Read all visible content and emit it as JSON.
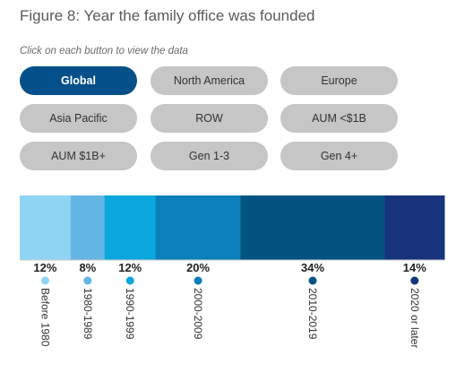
{
  "title": "Figure 8: Year the family office was founded",
  "instruction": "Click on each button to view the data",
  "buttons": [
    {
      "label": "Global",
      "active": true
    },
    {
      "label": "North America",
      "active": false
    },
    {
      "label": "Europe",
      "active": false
    },
    {
      "label": "Asia Pacific",
      "active": false
    },
    {
      "label": "ROW",
      "active": false
    },
    {
      "label": "AUM <$1B",
      "active": false
    },
    {
      "label": "AUM $1B+",
      "active": false
    },
    {
      "label": "Gen 1-3",
      "active": false
    },
    {
      "label": "Gen 4+",
      "active": false
    }
  ],
  "colors": {
    "active_button": "#05508a",
    "inactive_button": "#c6c6c6"
  },
  "chart_data": {
    "type": "bar",
    "orientation": "stacked-horizontal",
    "title": "Figure 8: Year the family office was founded",
    "categories": [
      "Before 1980",
      "1980-1989",
      "1990-1999",
      "2000-2009",
      "2010-2019",
      "2020 or later"
    ],
    "values": [
      12,
      8,
      12,
      20,
      34,
      14
    ],
    "value_labels": [
      "12%",
      "8%",
      "12%",
      "20%",
      "34%",
      "14%"
    ],
    "unit": "%",
    "colors": [
      "#8fd5f3",
      "#63b5e5",
      "#0aa7df",
      "#0a7fba",
      "#02537f",
      "#17347c"
    ],
    "marker_colors": [
      "#8fd5f3",
      "#63b5e5",
      "#0aa7df",
      "#0a7fba",
      "#02537f",
      "#17347c"
    ]
  }
}
